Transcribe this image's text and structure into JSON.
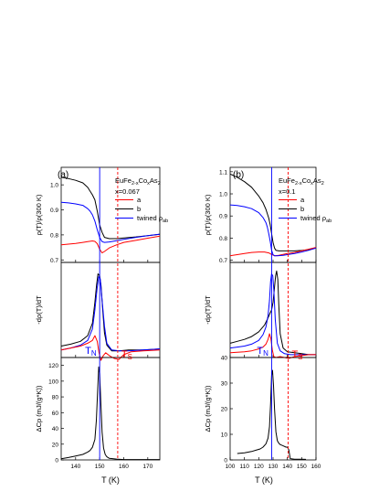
{
  "chart_data": [
    {
      "panel": "a",
      "label": "(a)",
      "material": "EuFe2-xCoxAs2",
      "composition": "x=0.067",
      "xlabel": "T (K)",
      "xlim": [
        134,
        175
      ],
      "xticks": [
        140,
        150,
        160,
        170
      ],
      "T_N": 150.0,
      "T_S": 157.5,
      "T_N_label": "T",
      "T_N_sub": "N",
      "T_S_label": "T",
      "T_S_sub": "S",
      "top": {
        "type": "line",
        "ylabel": "ρ(T)/ρ(300 K)",
        "ylim": [
          0.69,
          1.07
        ],
        "yticks": [
          0.7,
          0.8,
          0.9,
          1.0
        ],
        "ytick_labels": [
          "0.7",
          "0.8",
          "0.9",
          "1.0"
        ],
        "legend": [
          "a",
          "b",
          "twined ρab"
        ],
        "series": [
          {
            "name": "b",
            "color": "#000000",
            "x": [
              134,
              137,
              140,
              143,
              145,
              146,
              147,
              148,
              149,
              150,
              151,
              152,
              154,
              157,
              160,
              165,
              170,
              175
            ],
            "y": [
              1.03,
              1.025,
              1.018,
              1.008,
              0.99,
              0.975,
              0.96,
              0.94,
              0.895,
              0.84,
              0.81,
              0.79,
              0.785,
              0.785,
              0.788,
              0.792,
              0.797,
              0.802
            ]
          },
          {
            "name": "a",
            "color": "#ff0000",
            "x": [
              134,
              137,
              140,
              143,
              145,
              147,
              148,
              149,
              150,
              151,
              152,
              154,
              157,
              160,
              165,
              170,
              175
            ],
            "y": [
              0.76,
              0.763,
              0.766,
              0.77,
              0.773,
              0.776,
              0.774,
              0.765,
              0.743,
              0.728,
              0.734,
              0.748,
              0.76,
              0.77,
              0.778,
              0.787,
              0.795
            ]
          },
          {
            "name": "twined ρab",
            "color": "#0000ff",
            "x": [
              134,
              137,
              140,
              143,
              145,
              146,
              147,
              148,
              149,
              150,
              151,
              152,
              154,
              157,
              160,
              165,
              170,
              175
            ],
            "y": [
              0.93,
              0.928,
              0.924,
              0.918,
              0.905,
              0.895,
              0.88,
              0.855,
              0.82,
              0.79,
              0.773,
              0.77,
              0.772,
              0.777,
              0.782,
              0.79,
              0.797,
              0.803
            ]
          }
        ]
      },
      "mid": {
        "type": "line",
        "ylabel": "-dρ(T)/dT",
        "ylim": [
          0,
          1
        ],
        "series": [
          {
            "name": "b",
            "color": "#000000",
            "x": [
              134,
              138,
              142,
              145,
              147,
              148,
              148.7,
              149.3,
              150,
              150.6,
              151.2,
              152,
              153,
              155,
              158,
              162,
              168,
              175
            ],
            "y": [
              0.12,
              0.14,
              0.17,
              0.23,
              0.36,
              0.58,
              0.76,
              0.88,
              0.86,
              0.75,
              0.52,
              0.26,
              0.13,
              0.07,
              0.07,
              0.08,
              0.08,
              0.09
            ]
          },
          {
            "name": "twined ρab",
            "color": "#0000ff",
            "x": [
              134,
              138,
              142,
              145,
              147,
              148,
              149,
              149.6,
              150.2,
              151,
              152,
              153,
              155,
              158,
              162,
              168,
              175
            ],
            "y": [
              0.08,
              0.1,
              0.13,
              0.18,
              0.3,
              0.5,
              0.74,
              0.85,
              0.83,
              0.6,
              0.33,
              0.15,
              0.08,
              0.07,
              0.07,
              0.08,
              0.09
            ]
          },
          {
            "name": "a",
            "color": "#ff0000",
            "x": [
              134,
              138,
              142,
              145,
              147,
              148,
              149,
              149.7,
              150.5,
              151.5,
              152.5,
              154,
              156,
              158,
              160,
              163,
              168,
              175
            ],
            "y": [
              0.08,
              0.1,
              0.12,
              0.15,
              0.18,
              0.23,
              0.17,
              0.05,
              -0.03,
              0.02,
              0.05,
              0.02,
              -0.01,
              -0.02,
              0.03,
              0.06,
              0.07,
              0.08
            ]
          }
        ]
      },
      "bottom": {
        "type": "line",
        "ylabel": "ΔCp (mJ/(g*K))",
        "ylim": [
          0,
          130
        ],
        "yticks": [
          0,
          20,
          40,
          60,
          80,
          100,
          120
        ],
        "series": [
          {
            "name": "ΔCp",
            "color": "#000000",
            "x": [
              134,
              137,
              140,
              143,
              145,
              146,
              147,
              148,
              148.6,
              149.2,
              149.6,
              150,
              150.5,
              151,
              151.6,
              152.3,
              153,
              154,
              157,
              160,
              165,
              170,
              175
            ],
            "y": [
              1.5,
              3,
              5,
              7,
              10,
              12,
              16,
              26,
              50,
              90,
              118,
              110,
              70,
              35,
              15,
              7,
              4,
              2,
              1,
              0.5,
              0.5,
              0.5,
              0.5
            ]
          }
        ]
      }
    },
    {
      "panel": "b",
      "label": "(b)",
      "material": "EuFe2-xCoxAs2",
      "composition": "x=0.1",
      "xlabel": "T (K)",
      "xlim": [
        100,
        160
      ],
      "xticks": [
        100,
        110,
        120,
        130,
        140,
        150,
        160
      ],
      "T_N": 129.0,
      "T_S": 140.5,
      "T_N_label": "T",
      "T_N_sub": "N",
      "T_S_label": "T",
      "T_S_sub": "S",
      "top": {
        "type": "line",
        "ylabel": "ρ(T)/ρ(300 K)",
        "ylim": [
          0.69,
          1.12
        ],
        "yticks": [
          0.7,
          0.8,
          0.9,
          1.0,
          1.1
        ],
        "ytick_labels": [
          "0.7",
          "0.8",
          "0.9",
          "1.0",
          "1.1"
        ],
        "legend": [
          "a",
          "b",
          "twined ρab"
        ],
        "series": [
          {
            "name": "b",
            "color": "#000000",
            "x": [
              100,
              105,
              110,
              115,
              120,
              123,
              125,
              127,
              128,
              129,
              130,
              131,
              132,
              134,
              137,
              140,
              145,
              150,
              155,
              160
            ],
            "y": [
              1.09,
              1.075,
              1.055,
              1.03,
              0.99,
              0.96,
              0.93,
              0.89,
              0.86,
              0.82,
              0.78,
              0.755,
              0.745,
              0.742,
              0.742,
              0.742,
              0.742,
              0.744,
              0.748,
              0.755
            ]
          },
          {
            "name": "a",
            "color": "#ff0000",
            "x": [
              100,
              105,
              110,
              115,
              120,
              124,
              127,
              129,
              131,
              134,
              137,
              140,
              145,
              150,
              155,
              160
            ],
            "y": [
              0.72,
              0.725,
              0.73,
              0.735,
              0.737,
              0.737,
              0.733,
              0.726,
              0.72,
              0.722,
              0.726,
              0.73,
              0.735,
              0.742,
              0.75,
              0.758
            ]
          },
          {
            "name": "twined ρab",
            "color": "#0000ff",
            "x": [
              100,
              105,
              110,
              115,
              120,
              123,
              125,
              126,
              127,
              128,
              129,
              130,
              131,
              133,
              137,
              140,
              145,
              150,
              155,
              160
            ],
            "y": [
              0.95,
              0.947,
              0.942,
              0.933,
              0.915,
              0.893,
              0.87,
              0.85,
              0.82,
              0.785,
              0.745,
              0.725,
              0.72,
              0.72,
              0.722,
              0.725,
              0.73,
              0.737,
              0.745,
              0.755
            ]
          }
        ]
      },
      "mid": {
        "type": "line",
        "ylabel": "-dρ(T)/dT",
        "ylim": [
          0,
          1
        ],
        "series": [
          {
            "name": "b",
            "color": "#000000",
            "x": [
              100,
              105,
              110,
              115,
              120,
              124,
              126,
              128,
              129,
              130,
              131,
              131.8,
              132.5,
              133.3,
              134,
              135,
              137,
              140,
              145,
              150,
              155,
              160
            ],
            "y": [
              0.15,
              0.17,
              0.19,
              0.22,
              0.27,
              0.34,
              0.4,
              0.47,
              0.5,
              0.58,
              0.74,
              0.86,
              0.91,
              0.82,
              0.55,
              0.25,
              0.1,
              0.06,
              0.05,
              0.04,
              0.03,
              0.03
            ]
          },
          {
            "name": "twined ρab",
            "color": "#0000ff",
            "x": [
              100,
              105,
              110,
              115,
              120,
              123,
              125,
              126.5,
              127.5,
              128.3,
              129,
              129.8,
              130.6,
              131.5,
              133,
              135,
              138,
              142,
              147,
              152,
              160
            ],
            "y": [
              0.1,
              0.11,
              0.12,
              0.14,
              0.18,
              0.24,
              0.32,
              0.44,
              0.6,
              0.8,
              0.88,
              0.86,
              0.7,
              0.4,
              0.15,
              0.07,
              0.04,
              0.03,
              0.03,
              0.03,
              0.03
            ]
          },
          {
            "name": "a",
            "color": "#ff0000",
            "x": [
              100,
              105,
              110,
              115,
              120,
              123,
              125,
              126.5,
              127.5,
              128.5,
              129.5,
              130.5,
              132,
              135,
              138,
              141,
              145,
              150,
              155,
              160
            ],
            "y": [
              0.05,
              0.055,
              0.06,
              0.07,
              0.09,
              0.11,
              0.14,
              0.19,
              0.25,
              0.2,
              0.08,
              0.01,
              0.0,
              0.01,
              0.0,
              -0.01,
              0.01,
              0.02,
              0.03,
              0.03
            ]
          }
        ]
      },
      "bottom": {
        "type": "line",
        "ylabel": "ΔCp (mJ/(g*K))",
        "ylim": [
          0,
          40
        ],
        "yticks": [
          0,
          10,
          20,
          30,
          40
        ],
        "series": [
          {
            "name": "ΔCp",
            "color": "#000000",
            "x": [
              105,
              110,
              115,
              118,
              121,
              123,
              125,
              126.5,
              127.5,
              128.3,
              129,
              129.6,
              130.3,
              131,
              132,
              133,
              134,
              135,
              137,
              139,
              140,
              141,
              142,
              145,
              150,
              153
            ],
            "y": [
              2.5,
              2.8,
              3.3,
              3.8,
              4.3,
              5,
              6.3,
              8.5,
              13,
              22,
              33,
              35,
              29,
              20,
              11,
              7.5,
              6.5,
              6,
              5.5,
              5,
              5,
              4,
              0.5,
              0.3,
              0.3,
              0.2
            ]
          }
        ]
      }
    }
  ]
}
